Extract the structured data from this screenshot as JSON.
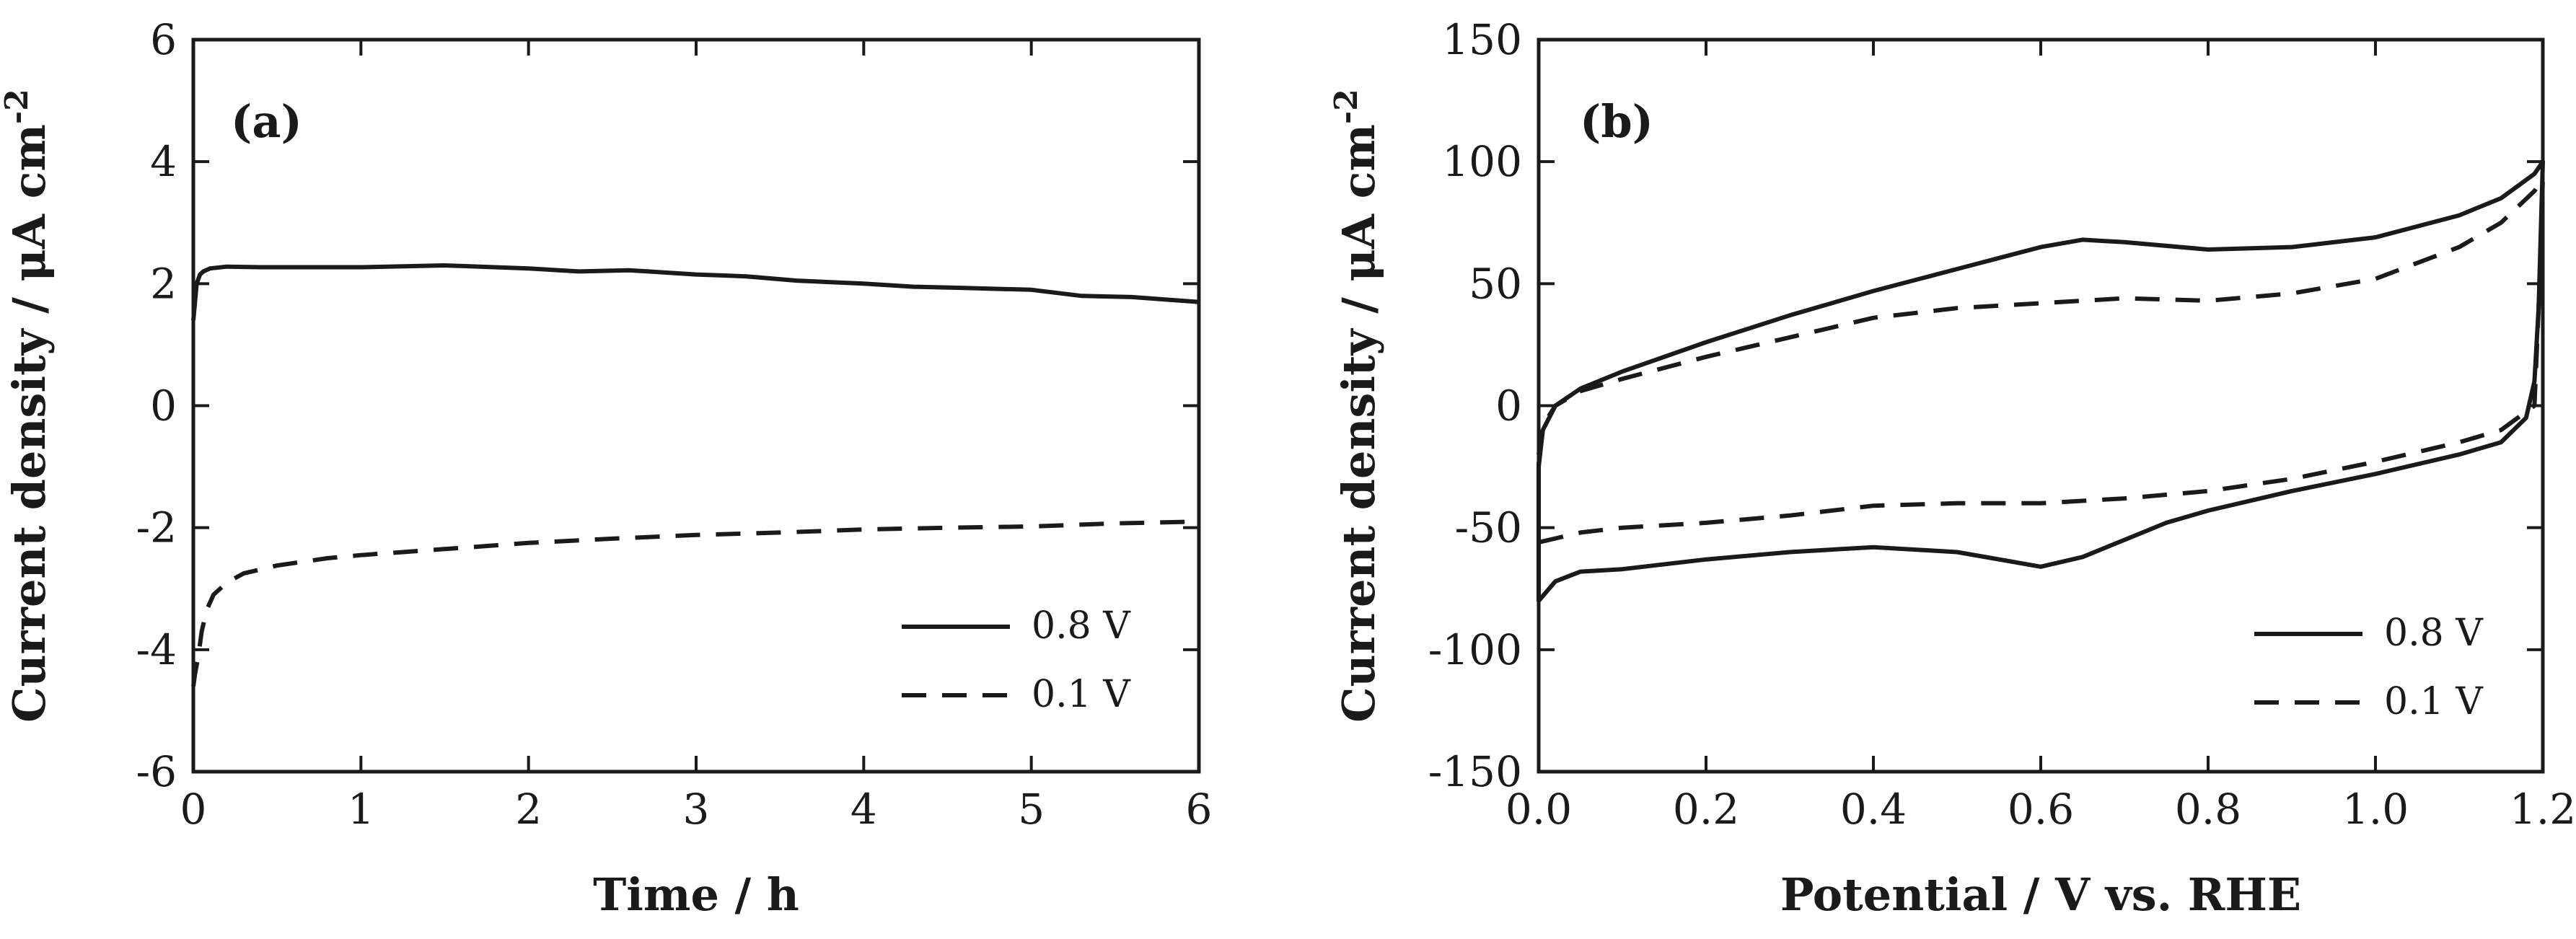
{
  "chart_data": [
    {
      "id": "a",
      "type": "line",
      "panel_label": "(a)",
      "xlabel": "Time / h",
      "ylabel": "Current density / μA cm",
      "ylabel_superscript": "-2",
      "xlim": [
        0,
        6
      ],
      "ylim": [
        -6,
        6
      ],
      "xticks": [
        0,
        1,
        2,
        3,
        4,
        5,
        6
      ],
      "xtick_labels": [
        "0",
        "1",
        "2",
        "3",
        "4",
        "5",
        "6"
      ],
      "yticks": [
        -6,
        -4,
        -2,
        0,
        2,
        4,
        6
      ],
      "ytick_labels": [
        "-6",
        "-4",
        "-2",
        "0",
        "2",
        "4",
        "6"
      ],
      "grid": false,
      "legend_position": "bottom-right",
      "series": [
        {
          "name": "0.8 V",
          "style": "solid",
          "x": [
            0,
            0.01,
            0.02,
            0.04,
            0.06,
            0.1,
            0.2,
            0.4,
            0.6,
            1.0,
            1.5,
            2.0,
            2.3,
            2.6,
            3.0,
            3.3,
            3.6,
            4.0,
            4.3,
            4.6,
            5.0,
            5.3,
            5.6,
            6.0
          ],
          "y": [
            1.4,
            1.7,
            2.0,
            2.15,
            2.2,
            2.25,
            2.28,
            2.27,
            2.27,
            2.27,
            2.3,
            2.25,
            2.2,
            2.22,
            2.15,
            2.12,
            2.05,
            2.0,
            1.95,
            1.93,
            1.9,
            1.8,
            1.78,
            1.7
          ]
        },
        {
          "name": "0.1 V",
          "style": "dashed",
          "x": [
            0,
            0.01,
            0.03,
            0.05,
            0.08,
            0.12,
            0.2,
            0.3,
            0.5,
            0.8,
            1.0,
            1.5,
            2.0,
            2.5,
            3.0,
            3.5,
            4.0,
            4.5,
            5.0,
            5.5,
            6.0
          ],
          "y": [
            -4.6,
            -4.4,
            -4.1,
            -3.7,
            -3.35,
            -3.1,
            -2.9,
            -2.75,
            -2.62,
            -2.5,
            -2.45,
            -2.35,
            -2.25,
            -2.18,
            -2.12,
            -2.08,
            -2.03,
            -2.0,
            -1.98,
            -1.93,
            -1.9
          ]
        }
      ]
    },
    {
      "id": "b",
      "type": "line",
      "panel_label": "(b)",
      "xlabel": "Potential / V vs. RHE",
      "ylabel": "Current density / μA cm",
      "ylabel_superscript": "-2",
      "xlim": [
        0.0,
        1.2
      ],
      "ylim": [
        -150,
        150
      ],
      "xticks": [
        0.0,
        0.2,
        0.4,
        0.6,
        0.8,
        1.0,
        1.2
      ],
      "xtick_labels": [
        "0.0",
        "0.2",
        "0.4",
        "0.6",
        "0.8",
        "1.0",
        "1.2"
      ],
      "yticks": [
        -150,
        -100,
        -50,
        0,
        50,
        100,
        150
      ],
      "ytick_labels": [
        "-150",
        "-100",
        "-50",
        "0",
        "50",
        "100",
        "150"
      ],
      "grid": false,
      "legend_position": "bottom-right",
      "series": [
        {
          "name": "0.8 V",
          "style": "solid",
          "x": [
            0.0,
            0.005,
            0.02,
            0.05,
            0.1,
            0.2,
            0.3,
            0.4,
            0.5,
            0.6,
            0.65,
            0.7,
            0.8,
            0.9,
            1.0,
            1.1,
            1.15,
            1.19,
            1.2,
            1.195,
            1.19,
            1.18,
            1.15,
            1.1,
            1.0,
            0.9,
            0.8,
            0.75,
            0.7,
            0.65,
            0.6,
            0.5,
            0.4,
            0.3,
            0.2,
            0.1,
            0.05,
            0.02,
            0.0,
            0.0
          ],
          "y": [
            -25,
            -10,
            0,
            7,
            14,
            26,
            37,
            47,
            56,
            65,
            68,
            67,
            64,
            65,
            69,
            78,
            85,
            95,
            100,
            40,
            10,
            -5,
            -15,
            -20,
            -28,
            -35,
            -43,
            -48,
            -55,
            -62,
            -66,
            -60,
            -58,
            -60,
            -63,
            -67,
            -68,
            -72,
            -80,
            -25
          ]
        },
        {
          "name": "0.1 V",
          "style": "dashed",
          "x": [
            0.0,
            0.005,
            0.02,
            0.05,
            0.1,
            0.2,
            0.3,
            0.4,
            0.5,
            0.6,
            0.7,
            0.8,
            0.9,
            1.0,
            1.1,
            1.15,
            1.19,
            1.2,
            1.195,
            1.19,
            1.15,
            1.1,
            1.0,
            0.9,
            0.8,
            0.7,
            0.6,
            0.5,
            0.4,
            0.3,
            0.2,
            0.1,
            0.05,
            0.0,
            0.0
          ],
          "y": [
            -20,
            -8,
            0,
            6,
            11,
            20,
            28,
            36,
            40,
            42,
            44,
            43,
            46,
            52,
            65,
            75,
            88,
            93,
            40,
            0,
            -10,
            -15,
            -23,
            -30,
            -35,
            -38,
            -40,
            -40,
            -41,
            -45,
            -48,
            -50,
            -52,
            -56,
            -20
          ]
        }
      ]
    }
  ]
}
